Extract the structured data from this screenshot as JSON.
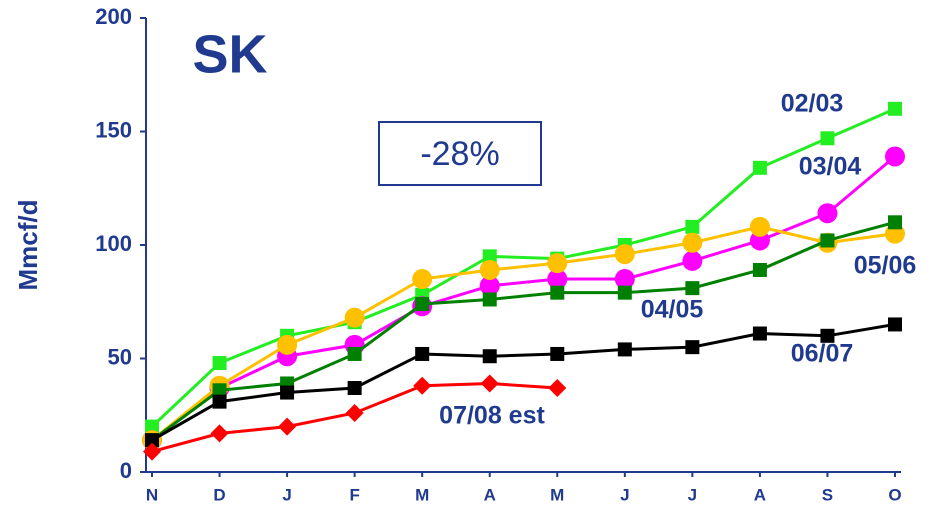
{
  "chart_data": {
    "type": "line",
    "title": "SK",
    "annotation": "-28%",
    "y_label": "Mmcf/d",
    "categories": [
      "N",
      "D",
      "J",
      "F",
      "M",
      "A",
      "M",
      "J",
      "J",
      "A",
      "S",
      "O"
    ],
    "ylim": [
      0,
      200
    ],
    "yticks": [
      0,
      50,
      100,
      150,
      200
    ],
    "series": [
      {
        "name": "02/03",
        "color": "#22ee22",
        "marker": "square",
        "values": [
          20,
          48,
          60,
          66,
          78,
          95,
          94,
          100,
          108,
          134,
          147,
          160
        ]
      },
      {
        "name": "03/04",
        "color": "#ff00ff",
        "marker": "circle",
        "values": [
          14,
          37,
          51,
          56,
          73,
          82,
          85,
          85,
          93,
          102,
          114,
          139
        ]
      },
      {
        "name": "05/06",
        "color": "#ffc000",
        "marker": "circle",
        "values": [
          14,
          38,
          56,
          68,
          85,
          89,
          92,
          96,
          101,
          108,
          101,
          105
        ]
      },
      {
        "name": "04/05",
        "color": "#008000",
        "marker": "square",
        "values": [
          14,
          36,
          39,
          52,
          74,
          76,
          79,
          79,
          81,
          89,
          102,
          110
        ]
      },
      {
        "name": "06/07",
        "color": "#000000",
        "marker": "square",
        "values": [
          14,
          31,
          35,
          37,
          52,
          51,
          52,
          54,
          55,
          61,
          60,
          65
        ]
      },
      {
        "name": "07/08 est",
        "color": "#ff0000",
        "marker": "diamond",
        "values": [
          9,
          17,
          20,
          26,
          38,
          39,
          37,
          null,
          null,
          null,
          null,
          null
        ]
      }
    ]
  }
}
